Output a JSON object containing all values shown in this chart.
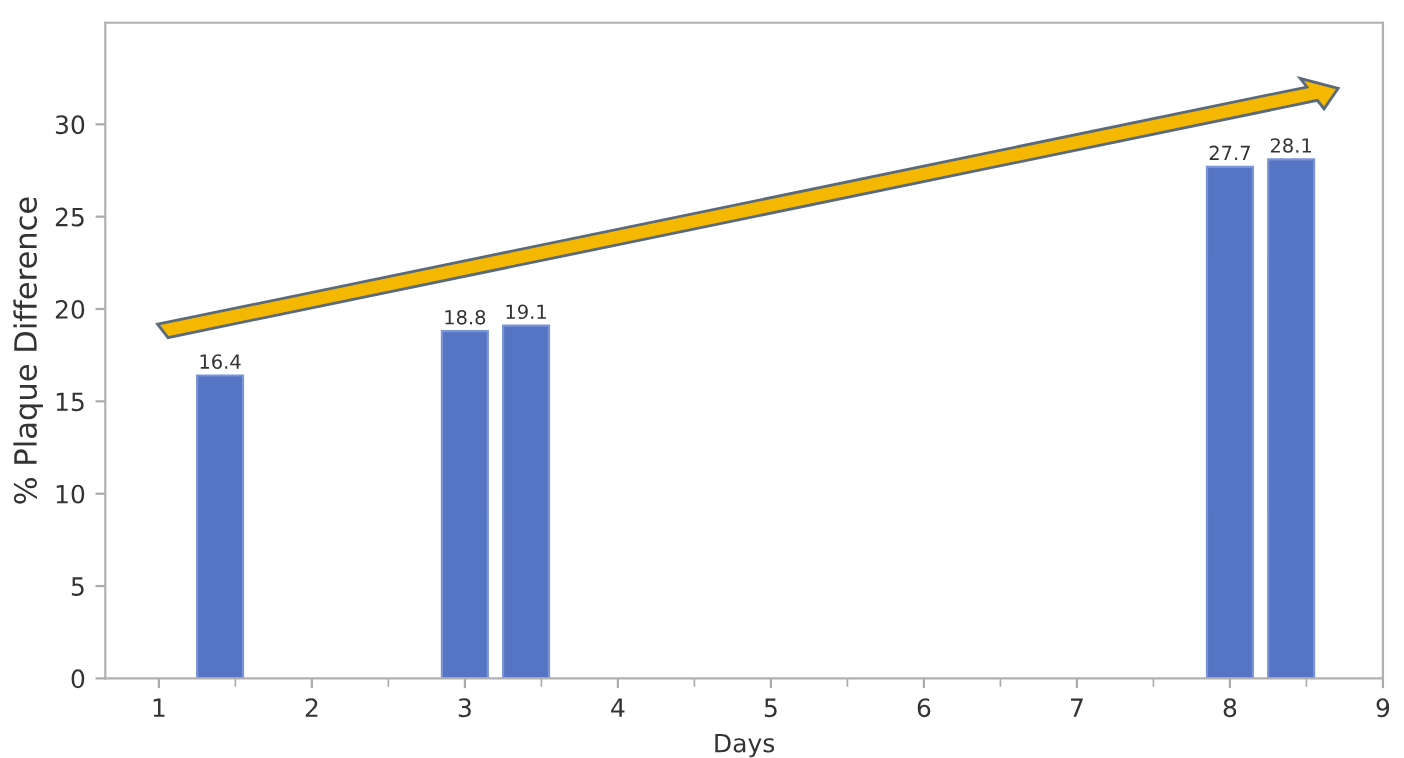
{
  "chart_data": {
    "type": "bar",
    "xlabel": "Days",
    "ylabel": "% Plaque Difference",
    "x": [
      1.4,
      3.0,
      3.4,
      8.0,
      8.4
    ],
    "values": [
      16.4,
      18.8,
      19.1,
      27.7,
      28.1
    ],
    "color": "#5575c4",
    "data_labels": true,
    "xlim": [
      0.65,
      9
    ],
    "xticks": [
      1,
      2,
      3,
      4,
      5,
      6,
      7,
      8,
      9
    ],
    "ylim": [
      0,
      35.5
    ],
    "yticks": [
      0,
      5,
      10,
      15,
      20,
      25,
      30
    ],
    "grid": false,
    "legend": false
  }
}
